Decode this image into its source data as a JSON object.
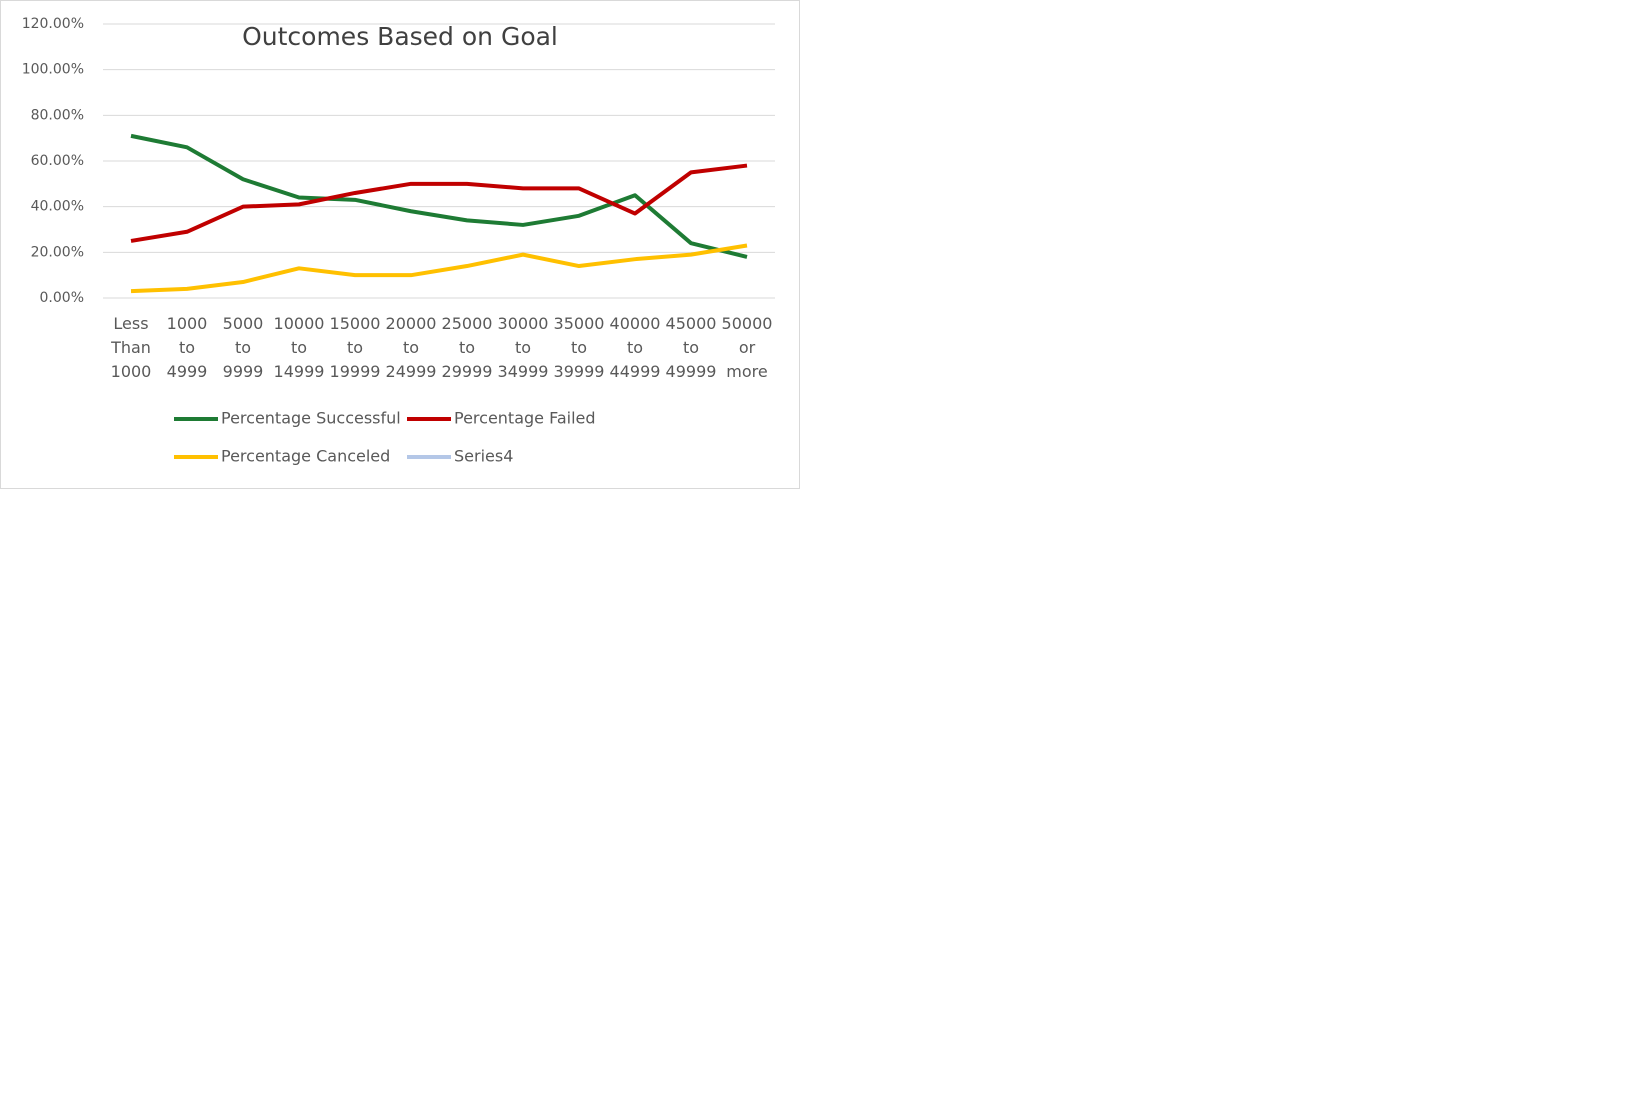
{
  "chart_data": {
    "type": "line",
    "title": "Outcomes Based on Goal",
    "categories": [
      "Less Than 1000",
      "1000 to 4999",
      "5000 to 9999",
      "10000 to 14999",
      "15000 to 19999",
      "20000 to 24999",
      "25000 to 29999",
      "30000 to 34999",
      "35000 to 39999",
      "40000 to 44999",
      "45000 to 49999",
      "50000 or more"
    ],
    "series": [
      {
        "name": "Percentage Successful",
        "color": "#1e7b34",
        "values": [
          71,
          66,
          52,
          44,
          43,
          38,
          34,
          32,
          36,
          45,
          24,
          18
        ]
      },
      {
        "name": "Percentage Failed",
        "color": "#c00000",
        "values": [
          25,
          29,
          40,
          41,
          46,
          50,
          50,
          48,
          48,
          37,
          55,
          58
        ]
      },
      {
        "name": "Percentage Canceled",
        "color": "#ffc000",
        "values": [
          3,
          4,
          7,
          13,
          10,
          10,
          14,
          19,
          14,
          17,
          19,
          23
        ]
      },
      {
        "name": "Series4",
        "color": "#b4c7e7",
        "values": [
          null,
          null,
          null,
          null,
          null,
          null,
          null,
          null,
          null,
          null,
          null,
          null
        ]
      }
    ],
    "ylim": [
      0,
      120
    ],
    "yticks": [
      {
        "value": 0,
        "label": "0.00%"
      },
      {
        "value": 20,
        "label": "20.00%"
      },
      {
        "value": 40,
        "label": "40.00%"
      },
      {
        "value": 60,
        "label": "60.00%"
      },
      {
        "value": 80,
        "label": "80.00%"
      },
      {
        "value": 100,
        "label": "100.00%"
      },
      {
        "value": 120,
        "label": "120.00%"
      }
    ],
    "grid": true
  }
}
